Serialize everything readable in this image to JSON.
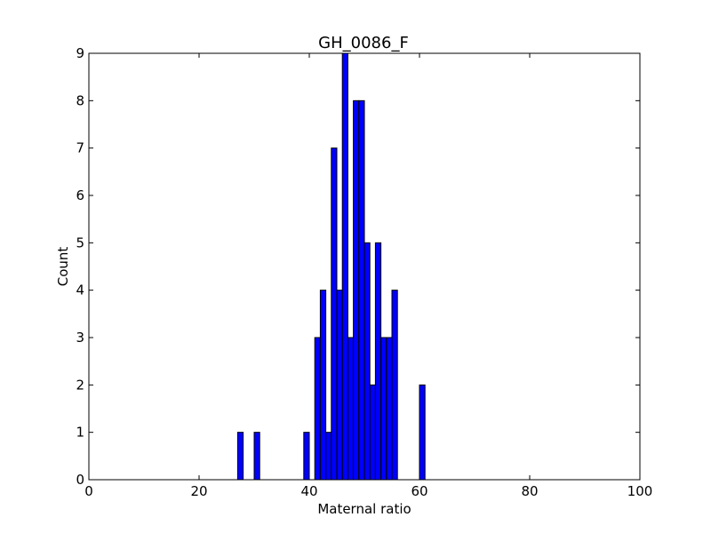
{
  "chart_data": {
    "type": "bar",
    "title": "GH_0086_F",
    "xlabel": "Maternal ratio",
    "ylabel": "Count",
    "xlim": [
      0,
      100
    ],
    "ylim": [
      0,
      9
    ],
    "xticks": [
      0,
      20,
      40,
      60,
      80,
      100
    ],
    "yticks": [
      0,
      1,
      2,
      3,
      4,
      5,
      6,
      7,
      8,
      9
    ],
    "bin_width": 1,
    "bar_color": "#0000ff",
    "edge_color": "#000000",
    "grid": false,
    "bins": [
      {
        "x": 27,
        "count": 1
      },
      {
        "x": 30,
        "count": 1
      },
      {
        "x": 39,
        "count": 1
      },
      {
        "x": 41,
        "count": 3
      },
      {
        "x": 42,
        "count": 4
      },
      {
        "x": 43,
        "count": 1
      },
      {
        "x": 44,
        "count": 7
      },
      {
        "x": 45,
        "count": 4
      },
      {
        "x": 46,
        "count": 9
      },
      {
        "x": 47,
        "count": 3
      },
      {
        "x": 48,
        "count": 8
      },
      {
        "x": 49,
        "count": 8
      },
      {
        "x": 50,
        "count": 5
      },
      {
        "x": 51,
        "count": 2
      },
      {
        "x": 52,
        "count": 5
      },
      {
        "x": 53,
        "count": 3
      },
      {
        "x": 54,
        "count": 3
      },
      {
        "x": 55,
        "count": 4
      },
      {
        "x": 60,
        "count": 2
      }
    ]
  }
}
